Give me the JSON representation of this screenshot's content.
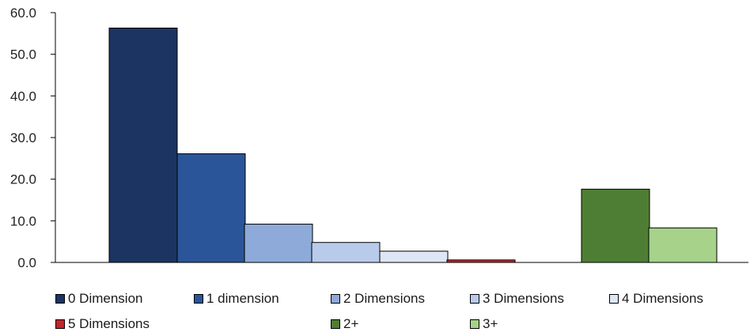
{
  "chart_data": {
    "type": "bar",
    "title": "",
    "xlabel": "",
    "ylabel": "",
    "ylim": [
      0,
      60
    ],
    "yticks": [
      "0.0",
      "10.0",
      "20.0",
      "30.0",
      "40.0",
      "50.0",
      "60.0"
    ],
    "grid": false,
    "legend_position": "bottom",
    "series": [
      {
        "name": "0 Dimension",
        "value": 56.3,
        "color": "#1c3461"
      },
      {
        "name": "1 dimension",
        "value": 26.1,
        "color": "#2a5599"
      },
      {
        "name": "2 Dimensions",
        "value": 9.2,
        "color": "#8eaad8"
      },
      {
        "name": "3 Dimensions",
        "value": 4.8,
        "color": "#b9cbea"
      },
      {
        "name": "4 Dimensions",
        "value": 2.7,
        "color": "#dde6f4"
      },
      {
        "name": "5 Dimensions",
        "value": 0.6,
        "color": "#c0262c"
      },
      {
        "name": "2+",
        "value": 17.6,
        "color": "#4e7e33"
      },
      {
        "name": "3+",
        "value": 8.3,
        "color": "#a6d28a"
      }
    ]
  }
}
